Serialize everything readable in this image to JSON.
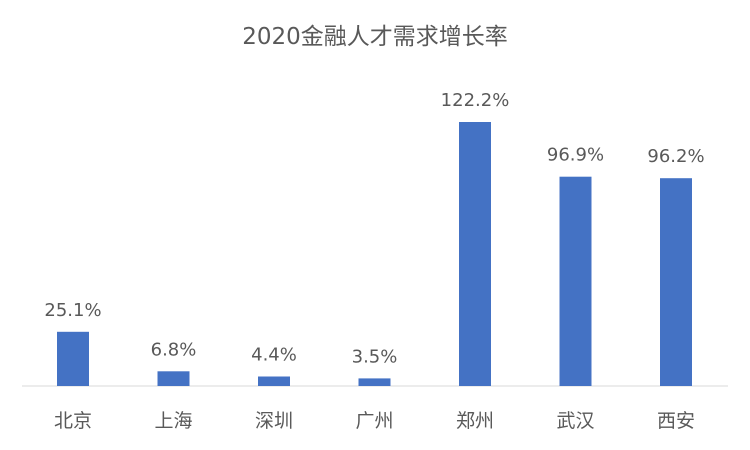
{
  "chart_data": {
    "type": "bar",
    "title": "2020金融人才需求增长率",
    "categories": [
      "北京",
      "上海",
      "深圳",
      "广州",
      "郑州",
      "武汉",
      "西安"
    ],
    "values": [
      25.1,
      6.8,
      4.4,
      3.5,
      122.2,
      96.9,
      96.2
    ],
    "data_labels": [
      "25.1%",
      "6.8%",
      "4.4%",
      "3.5%",
      "122.2%",
      "96.9%",
      "96.2%"
    ],
    "unit": "%",
    "ylim": [
      0,
      122.2
    ],
    "grid": false,
    "legend": "none",
    "bar_color": "#4472C4"
  }
}
